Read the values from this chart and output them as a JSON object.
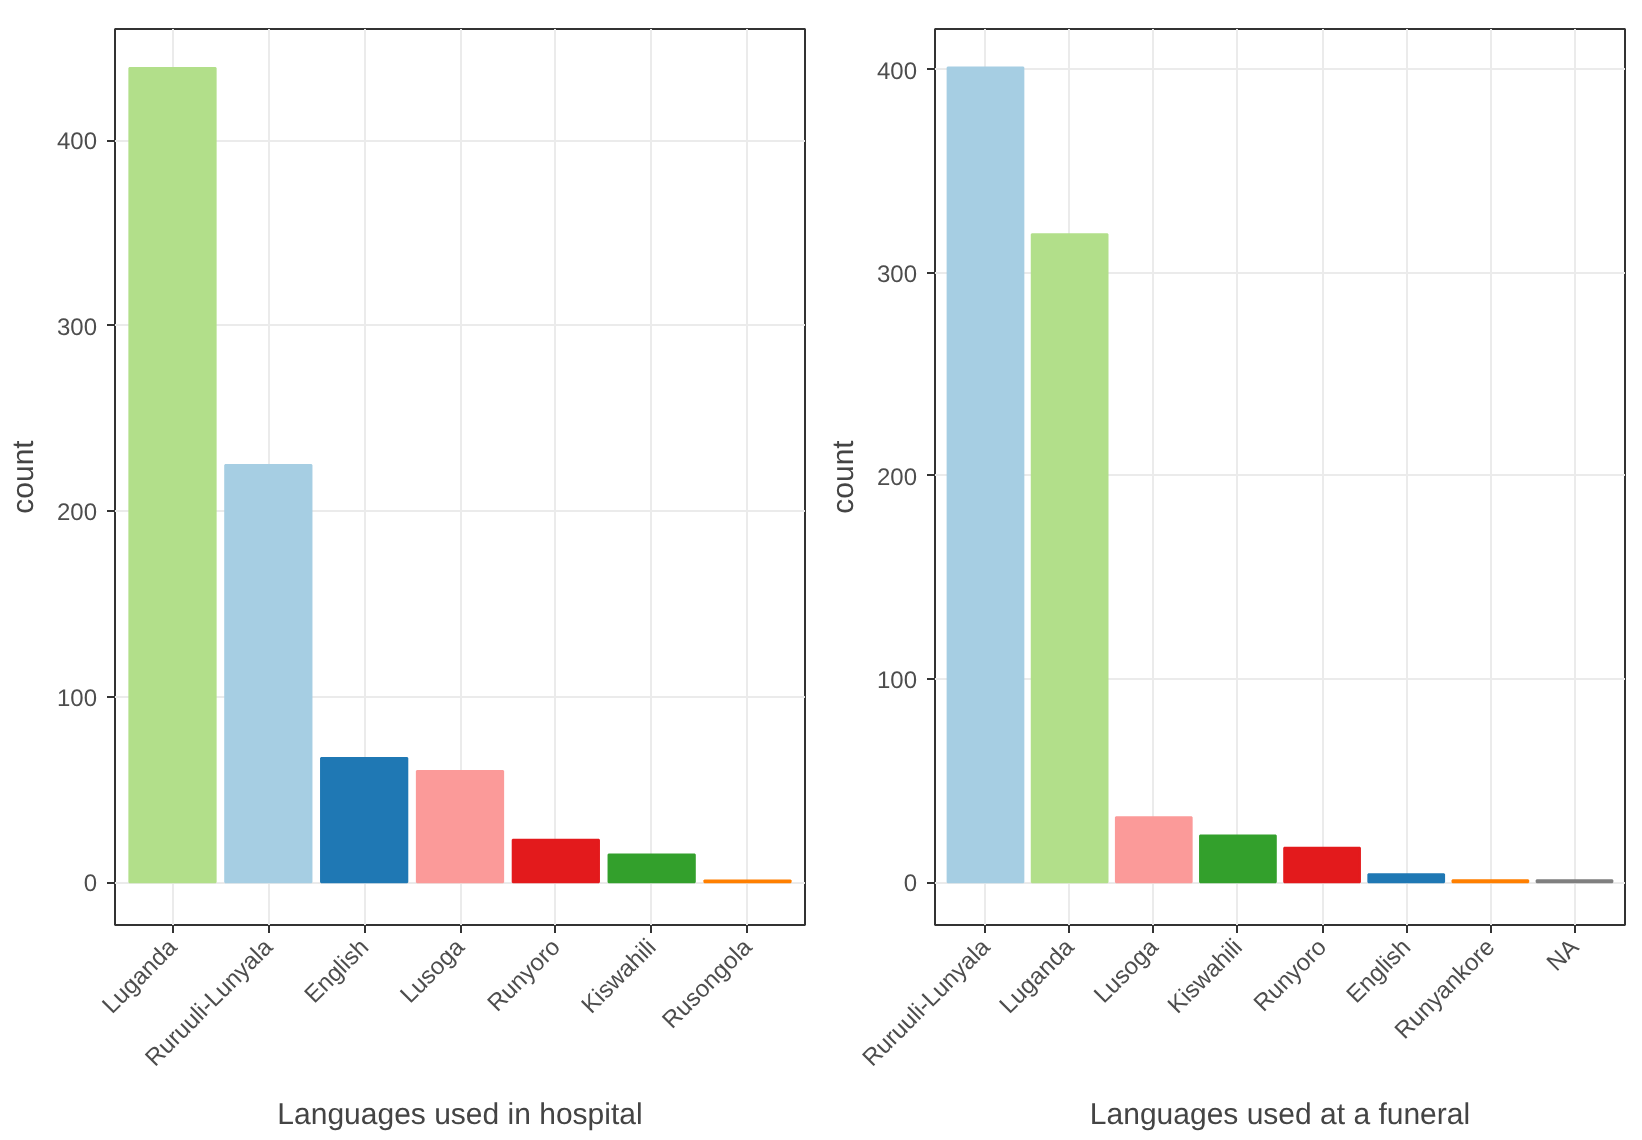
{
  "chart_data": [
    {
      "type": "bar",
      "xlabel": "Languages used in hospital",
      "ylabel": "count",
      "categories": [
        "Luganda",
        "Ruruuli-Lunyala",
        "English",
        "Lusoga",
        "Runyoro",
        "Kiswahili",
        "Rusongola"
      ],
      "values": [
        439,
        225,
        67,
        60,
        23,
        15,
        1
      ],
      "colors": [
        "#b2df8a",
        "#a6cee3",
        "#1f78b4",
        "#fb9a99",
        "#e31a1c",
        "#33a02c",
        "#ff7f00"
      ],
      "ylim": [
        -23,
        460
      ],
      "yticks": [
        0,
        100,
        200,
        300,
        400
      ],
      "grid": true
    },
    {
      "type": "bar",
      "xlabel": "Languages used at a funeral",
      "ylabel": "count",
      "categories": [
        "Ruruuli-Lunyala",
        "Luganda",
        "Lusoga",
        "Kiswahili",
        "Runyoro",
        "English",
        "Runyankore",
        "NA"
      ],
      "values": [
        401,
        319,
        32,
        23,
        17,
        4,
        1,
        1
      ],
      "colors": [
        "#a6cee3",
        "#b2df8a",
        "#fb9a99",
        "#33a02c",
        "#e31a1c",
        "#1f78b4",
        "#ff7f00",
        "#7f7f7f"
      ],
      "ylim": [
        -21,
        420
      ],
      "yticks": [
        0,
        100,
        200,
        300,
        400
      ],
      "grid": true
    }
  ]
}
